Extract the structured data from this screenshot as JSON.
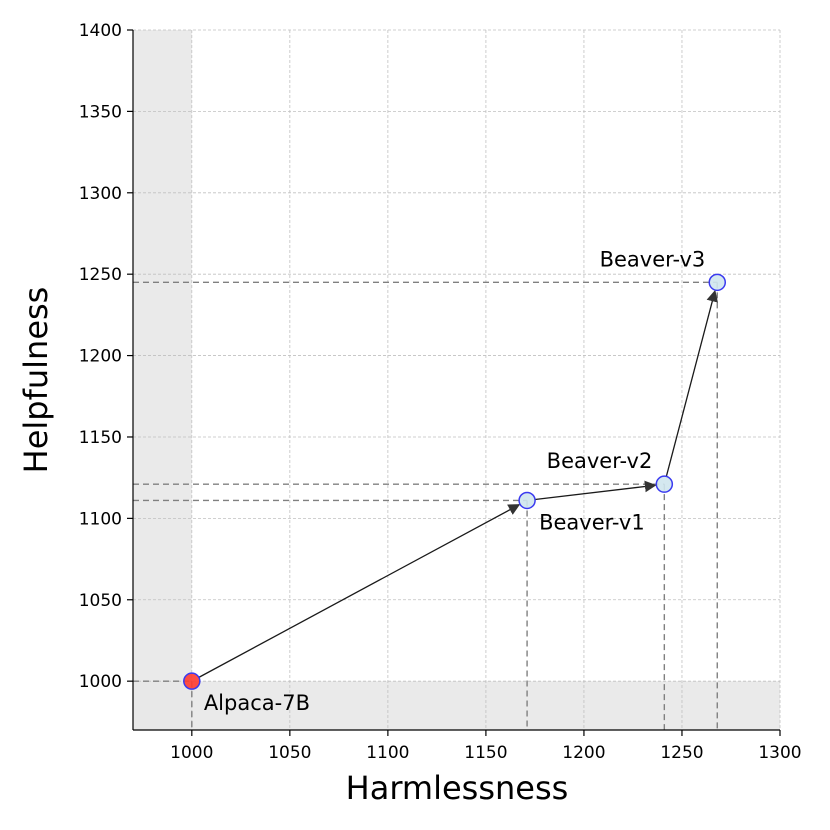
{
  "chart_data": {
    "type": "scatter",
    "title": "",
    "xlabel": "Harmlessness",
    "ylabel": "Helpfulness",
    "xlim": [
      970,
      1300
    ],
    "ylim": [
      970,
      1400
    ],
    "xticks": [
      1000,
      1050,
      1100,
      1150,
      1200,
      1250,
      1300
    ],
    "yticks": [
      1000,
      1050,
      1100,
      1150,
      1200,
      1250,
      1300,
      1350,
      1400
    ],
    "grid": true,
    "baseline": {
      "x": 1000,
      "y": 1000
    },
    "points": [
      {
        "label": "Alpaca-7B",
        "x": 1000,
        "y": 1000,
        "fill": "#ff3b30",
        "label_position": "below-right"
      },
      {
        "label": "Beaver-v1",
        "x": 1171,
        "y": 1111,
        "fill": "#cfe6ee",
        "label_position": "below-right"
      },
      {
        "label": "Beaver-v2",
        "x": 1241,
        "y": 1121,
        "fill": "#cfe6ee",
        "label_position": "above-left"
      },
      {
        "label": "Beaver-v3",
        "x": 1268,
        "y": 1245,
        "fill": "#cfe6ee",
        "label_position": "above-left"
      }
    ],
    "arrows": [
      {
        "from": "Alpaca-7B",
        "to": "Beaver-v1"
      },
      {
        "from": "Beaver-v1",
        "to": "Beaver-v2"
      },
      {
        "from": "Beaver-v2",
        "to": "Beaver-v3"
      }
    ],
    "colors": {
      "marker_edge": "#3a3af0",
      "shade": "#e8e8e8",
      "grid": "#c0c0c0",
      "guide": "#808080",
      "arrow": "#1a1a1a"
    }
  }
}
